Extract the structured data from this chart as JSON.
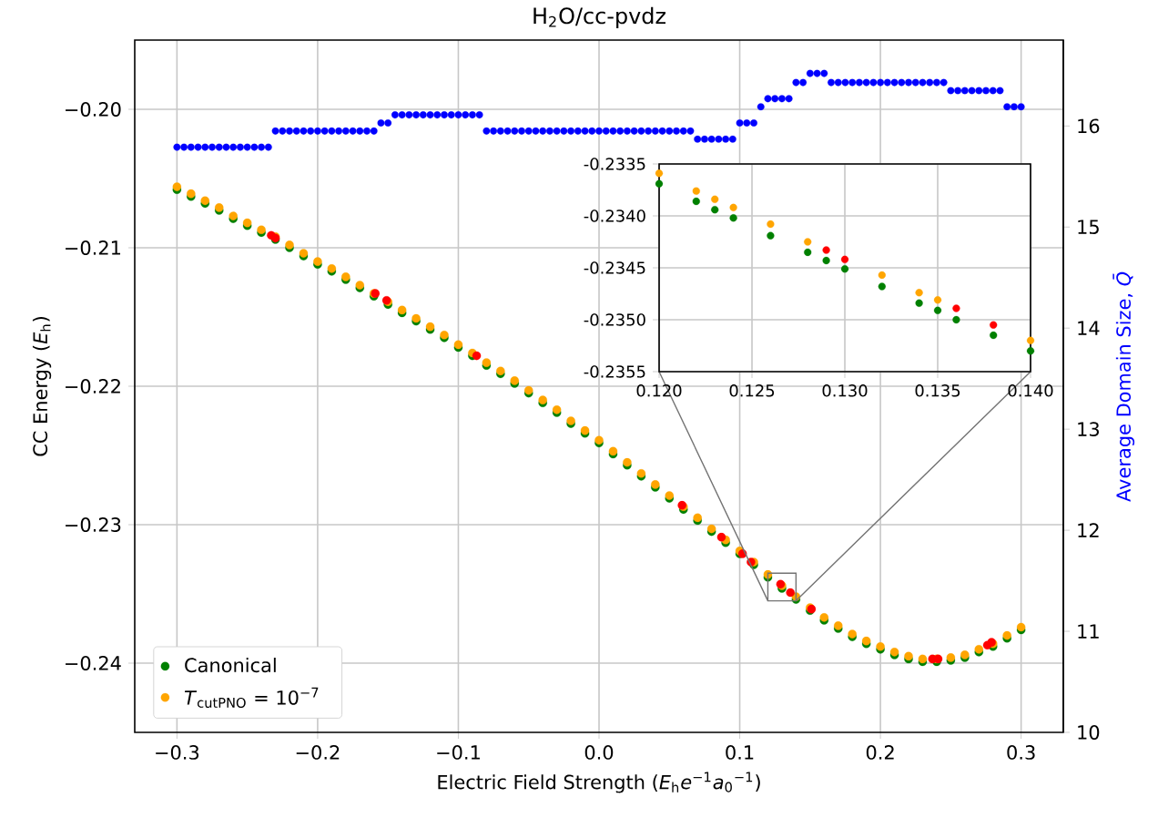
{
  "chart_data": [
    {
      "type": "scatter",
      "title": "H$_{2}$O/cc-pvdz",
      "xlabel": "Electric Field Strength (*E*$_{h}$*e*$^{−1}$*a*$_{0}$$^{−1}$)",
      "ylabel": "CC Energy (*E*$_{h}$)",
      "y2label": "Average Domain Size, *Q̄*",
      "xlim": [
        -0.33,
        0.33
      ],
      "ylim": [
        -0.245,
        -0.195
      ],
      "y2lim": [
        10,
        16.85
      ],
      "xticks": [
        {
          "value": -0.3,
          "label": "−0.3"
        },
        {
          "value": -0.2,
          "label": "−0.2"
        },
        {
          "value": -0.1,
          "label": "−0.1"
        },
        {
          "value": 0,
          "label": "0.0"
        },
        0.1,
        0.2,
        0.3
      ],
      "yticks": [
        {
          "value": -0.24,
          "label": "−0.24"
        },
        {
          "value": -0.23,
          "label": "−0.23"
        },
        {
          "value": -0.22,
          "label": "−0.22"
        },
        {
          "value": -0.21,
          "label": "−0.21"
        },
        {
          "value": -0.2,
          "label": "−0.20"
        }
      ],
      "y2ticks": [
        10,
        11,
        12,
        13,
        14,
        15,
        16
      ],
      "grid": true,
      "legend": "bottom left",
      "series": [
        {
          "axis": "y2",
          "color": "#0000ff",
          "x": [
            -0.3,
            -0.295,
            -0.29,
            -0.285,
            -0.28,
            -0.275,
            -0.27,
            -0.265,
            -0.26,
            -0.255,
            -0.25,
            -0.245,
            -0.24,
            -0.235,
            -0.23,
            -0.225,
            -0.22,
            -0.215,
            -0.21,
            -0.205,
            -0.2,
            -0.195,
            -0.19,
            -0.185,
            -0.18,
            -0.175,
            -0.17,
            -0.165,
            -0.16,
            -0.155,
            -0.15,
            -0.145,
            -0.14,
            -0.135,
            -0.13,
            -0.125,
            -0.12,
            -0.115,
            -0.11,
            -0.105,
            -0.1,
            -0.095,
            -0.09,
            -0.085,
            -0.08,
            -0.075,
            -0.07,
            -0.065,
            -0.06,
            -0.055,
            -0.05,
            -0.045,
            -0.04,
            -0.035,
            -0.03,
            -0.025,
            -0.02,
            -0.015,
            -0.01,
            -0.005,
            0,
            0.005,
            0.01,
            0.015,
            0.02,
            0.025,
            0.03,
            0.035,
            0.04,
            0.045,
            0.05,
            0.055,
            0.06,
            0.065,
            0.07,
            0.075,
            0.08,
            0.085,
            0.09,
            0.095,
            0.1,
            0.105,
            0.11,
            0.115,
            0.12,
            0.125,
            0.13,
            0.135,
            0.14,
            0.145,
            0.15,
            0.155,
            0.16,
            0.165,
            0.17,
            0.175,
            0.18,
            0.185,
            0.19,
            0.195,
            0.2,
            0.205,
            0.21,
            0.215,
            0.22,
            0.225,
            0.23,
            0.235,
            0.24,
            0.245,
            0.25,
            0.255,
            0.26,
            0.265,
            0.27,
            0.275,
            0.28,
            0.285,
            0.29,
            0.295,
            0.3
          ],
          "values": [
            15.79,
            15.79,
            15.79,
            15.79,
            15.79,
            15.79,
            15.79,
            15.79,
            15.79,
            15.79,
            15.79,
            15.79,
            15.79,
            15.79,
            15.95,
            15.95,
            15.95,
            15.95,
            15.95,
            15.95,
            15.95,
            15.95,
            15.95,
            15.95,
            15.95,
            15.95,
            15.95,
            15.95,
            15.95,
            16.03,
            16.03,
            16.11,
            16.11,
            16.11,
            16.11,
            16.11,
            16.11,
            16.11,
            16.11,
            16.11,
            16.11,
            16.11,
            16.11,
            16.11,
            15.95,
            15.95,
            15.95,
            15.95,
            15.95,
            15.95,
            15.95,
            15.95,
            15.95,
            15.95,
            15.95,
            15.95,
            15.95,
            15.95,
            15.95,
            15.95,
            15.95,
            15.95,
            15.95,
            15.95,
            15.95,
            15.95,
            15.95,
            15.95,
            15.95,
            15.95,
            15.95,
            15.95,
            15.95,
            15.95,
            15.87,
            15.87,
            15.87,
            15.87,
            15.87,
            15.87,
            16.03,
            16.03,
            16.03,
            16.19,
            16.27,
            16.27,
            16.27,
            16.27,
            16.43,
            16.43,
            16.52,
            16.52,
            16.52,
            16.43,
            16.43,
            16.43,
            16.43,
            16.43,
            16.43,
            16.43,
            16.43,
            16.43,
            16.43,
            16.43,
            16.43,
            16.43,
            16.43,
            16.43,
            16.43,
            16.43,
            16.35,
            16.35,
            16.35,
            16.35,
            16.35,
            16.35,
            16.35,
            16.35,
            16.19,
            16.19,
            16.19
          ]
        },
        {
          "name": "Canonical",
          "color": "#008000",
          "x": [
            -0.3,
            -0.29,
            -0.28,
            -0.27,
            -0.26,
            -0.25,
            -0.24,
            -0.23,
            -0.22,
            -0.21,
            -0.2,
            -0.19,
            -0.18,
            -0.17,
            -0.16,
            -0.15,
            -0.14,
            -0.13,
            -0.12,
            -0.11,
            -0.1,
            -0.09,
            -0.08,
            -0.07,
            -0.06,
            -0.05,
            -0.04,
            -0.03,
            -0.02,
            -0.01,
            0,
            0.01,
            0.02,
            0.03,
            0.04,
            0.05,
            0.06,
            0.07,
            0.08,
            0.09,
            0.1,
            0.11,
            0.12,
            0.13,
            0.14,
            0.15,
            0.16,
            0.17,
            0.18,
            0.19,
            0.2,
            0.21,
            0.22,
            0.23,
            0.24,
            0.25,
            0.26,
            0.27,
            0.28,
            0.29,
            0.3
          ],
          "values": [
            -0.2058,
            -0.2063,
            -0.2068,
            -0.2073,
            -0.2079,
            -0.2084,
            -0.2089,
            -0.2094,
            -0.21,
            -0.2106,
            -0.2112,
            -0.2117,
            -0.2123,
            -0.2129,
            -0.2135,
            -0.2141,
            -0.2147,
            -0.2153,
            -0.2159,
            -0.2165,
            -0.2172,
            -0.2178,
            -0.2185,
            -0.2191,
            -0.2198,
            -0.2205,
            -0.2212,
            -0.2219,
            -0.2227,
            -0.2234,
            -0.2241,
            -0.2249,
            -0.2257,
            -0.2265,
            -0.2273,
            -0.2281,
            -0.2289,
            -0.2297,
            -0.2305,
            -0.2313,
            -0.2321,
            -0.2329,
            -0.2338,
            -0.2346,
            -0.2354,
            -0.2362,
            -0.2369,
            -0.2375,
            -0.2381,
            -0.2386,
            -0.239,
            -0.2394,
            -0.2397,
            -0.2399,
            -0.2399,
            -0.2398,
            -0.2396,
            -0.2392,
            -0.2388,
            -0.2382,
            -0.2376
          ]
        },
        {
          "name": "*T*$_{cutPNO}$ = 10$^{−7}$",
          "color": "#ffa500",
          "x": [
            -0.3,
            -0.29,
            -0.28,
            -0.27,
            -0.26,
            -0.25,
            -0.24,
            -0.23,
            -0.22,
            -0.21,
            -0.2,
            -0.19,
            -0.18,
            -0.17,
            -0.16,
            -0.15,
            -0.14,
            -0.13,
            -0.12,
            -0.11,
            -0.1,
            -0.09,
            -0.08,
            -0.07,
            -0.06,
            -0.05,
            -0.04,
            -0.03,
            -0.02,
            -0.01,
            0,
            0.01,
            0.02,
            0.03,
            0.04,
            0.05,
            0.06,
            0.07,
            0.08,
            0.09,
            0.1,
            0.11,
            0.12,
            0.13,
            0.14,
            0.15,
            0.16,
            0.17,
            0.18,
            0.19,
            0.2,
            0.21,
            0.22,
            0.23,
            0.24,
            0.25,
            0.26,
            0.27,
            0.28,
            0.29,
            0.3
          ],
          "values": [
            -0.2056,
            -0.2061,
            -0.2066,
            -0.2071,
            -0.2077,
            -0.2082,
            -0.2087,
            -0.2092,
            -0.2098,
            -0.2104,
            -0.211,
            -0.2115,
            -0.2121,
            -0.2127,
            -0.2133,
            -0.2139,
            -0.2145,
            -0.2151,
            -0.2157,
            -0.2163,
            -0.217,
            -0.2176,
            -0.2183,
            -0.2189,
            -0.2196,
            -0.2203,
            -0.221,
            -0.2217,
            -0.2225,
            -0.2232,
            -0.2239,
            -0.2247,
            -0.2255,
            -0.2263,
            -0.2271,
            -0.2279,
            -0.2287,
            -0.2295,
            -0.2303,
            -0.2311,
            -0.2319,
            -0.2327,
            -0.2336,
            -0.2344,
            -0.2352,
            -0.236,
            -0.2367,
            -0.2373,
            -0.2379,
            -0.2384,
            -0.2388,
            -0.2392,
            -0.2395,
            -0.2397,
            -0.2397,
            -0.2396,
            -0.2394,
            -0.239,
            -0.2386,
            -0.238,
            -0.2374
          ]
        },
        {
          "color": "#ff0000",
          "x": [
            -0.233,
            -0.23,
            -0.159,
            -0.151,
            -0.087,
            0.059,
            0.087,
            0.102,
            0.108,
            0.129,
            0.136,
            0.151,
            0.237,
            0.241,
            0.276,
            0.279
          ],
          "values": [
            -0.2091,
            -0.2093,
            -0.2133,
            -0.2138,
            -0.2178,
            -0.2286,
            -0.2309,
            -0.2321,
            -0.2327,
            -0.2343,
            -0.2349,
            -0.2361,
            -0.2397,
            -0.2397,
            -0.2387,
            -0.2385
          ]
        }
      ]
    },
    {
      "type": "scatter",
      "xlim": [
        0.12,
        0.14
      ],
      "ylim": [
        -0.2355,
        -0.2335
      ],
      "xticks": [
        {
          "value": 0.12,
          "label": "0.120"
        },
        {
          "value": 0.125,
          "label": "0.125"
        },
        {
          "value": 0.13,
          "label": "0.130"
        },
        {
          "value": 0.135,
          "label": "0.135"
        },
        {
          "value": 0.14,
          "label": "0.140"
        }
      ],
      "yticks": [
        -0.2355,
        {
          "value": -0.235,
          "label": "-0.2350"
        },
        -0.2345,
        {
          "value": -0.234,
          "label": "-0.2340"
        },
        -0.2335
      ],
      "grid": true,
      "series": [
        {
          "color": "#008000",
          "x": [
            0.12,
            0.122,
            0.123,
            0.124,
            0.126,
            0.128,
            0.129,
            0.13,
            0.132,
            0.134,
            0.135,
            0.136,
            0.138,
            0.14
          ],
          "values": [
            -0.23369,
            -0.23386,
            -0.23394,
            -0.23402,
            -0.23419,
            -0.23435,
            -0.23443,
            -0.23451,
            -0.23468,
            -0.23484,
            -0.23491,
            -0.235,
            -0.23515,
            -0.2353
          ]
        },
        {
          "color": "#ffa500",
          "x": [
            0.12,
            0.122,
            0.123,
            0.124,
            0.126,
            0.128,
            0.132,
            0.134,
            0.135,
            0.14
          ],
          "values": [
            -0.23359,
            -0.23376,
            -0.23384,
            -0.23392,
            -0.23408,
            -0.23425,
            -0.23457,
            -0.23474,
            -0.23481,
            -0.2352
          ]
        },
        {
          "color": "#ff0000",
          "x": [
            0.129,
            0.13,
            0.136,
            0.138
          ],
          "values": [
            -0.23433,
            -0.23442,
            -0.23489,
            -0.23505
          ]
        }
      ]
    }
  ]
}
